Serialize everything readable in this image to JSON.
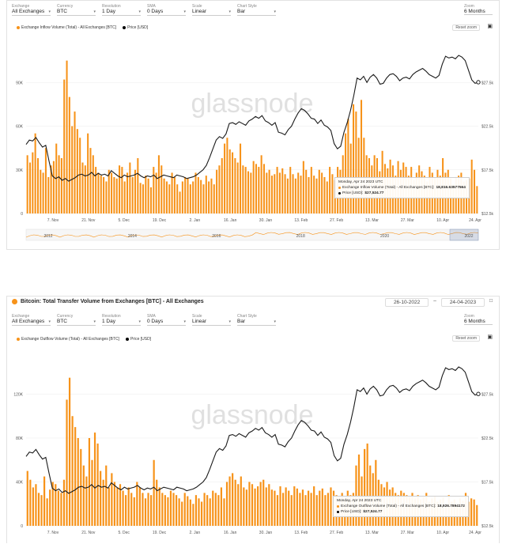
{
  "panel1": {
    "controls": [
      {
        "label": "Exchange",
        "value": "All Exchanges"
      },
      {
        "label": "Currency",
        "value": "BTC"
      },
      {
        "label": "Resolution",
        "value": "1 Day"
      },
      {
        "label": "SMA",
        "value": "0 Days"
      },
      {
        "label": "Scale",
        "value": "Linear"
      },
      {
        "label": "Chart Style",
        "value": "Bar"
      }
    ],
    "zoom": {
      "label": "Zoom",
      "value": "6 Months"
    },
    "reset_label": "Reset zoom",
    "legend": [
      {
        "name": "Exchange Inflow Volume (Total) - All Exchanges [BTC]",
        "color": "#f7931a"
      },
      {
        "name": "Price [USD]",
        "color": "#000000"
      }
    ],
    "tooltip": {
      "date": "Monday, Apr 24 2023 UTC",
      "series_label": "Exchange Inflow Volume (Total) - All Exchanges [BTC]:",
      "series_value": "18,816.63577564",
      "price_label": "Price [USD]:",
      "price_value": "$27,524.77"
    },
    "navigator_years": [
      "2012",
      "2014",
      "2016",
      "2018",
      "2020",
      "2022"
    ]
  },
  "panel2": {
    "title": "Bitcoin: Total Transfer Volume from Exchanges [BTC] - All Exchanges",
    "date_from": "26-10-2022",
    "date_sep": "–",
    "date_to": "24-04-2023",
    "controls": [
      {
        "label": "Exchange",
        "value": "All Exchanges"
      },
      {
        "label": "Currency",
        "value": "BTC"
      },
      {
        "label": "Resolution",
        "value": "1 Day"
      },
      {
        "label": "SMA",
        "value": "0 Days"
      },
      {
        "label": "Scale",
        "value": "Linear"
      },
      {
        "label": "Chart Style",
        "value": "Bar"
      }
    ],
    "zoom": {
      "label": "Zoom",
      "value": "6 Months"
    },
    "reset_label": "Reset zoom",
    "legend": [
      {
        "name": "Exchange Outflow Volume (Total) - All Exchanges [BTC]",
        "color": "#f7931a"
      },
      {
        "name": "Price [USD]",
        "color": "#000000"
      }
    ],
    "tooltip": {
      "date": "Monday, Apr 24 2023 UTC",
      "series_label": "Exchange Outflow Volume (Total) - All Exchanges [BTC]:",
      "series_value": "18,926.7894172",
      "price_label": "Price [USD]:",
      "price_value": "$27,524.77"
    }
  },
  "watermark": "glassnode",
  "colors": {
    "bar": "#f7931a",
    "price": "#1a1a1a",
    "grid": "#ececec"
  },
  "chart_data": [
    {
      "type": "bar",
      "x_ticks": [
        "7. Nov",
        "21. Nov",
        "5. Dec",
        "19. Dec",
        "2. Jan",
        "16. Jan",
        "30. Jan",
        "13. Feb",
        "27. Feb",
        "13. Mar",
        "27. Mar",
        "10. Apr",
        "24. Apr"
      ],
      "y_left_ticks": [
        "0",
        "30K",
        "60K",
        "90K"
      ],
      "y_right_ticks": [
        "$12.5k",
        "$17.5k",
        "$22.5k",
        "$27.5k"
      ],
      "y_left_range": [
        0,
        120000
      ],
      "y_right_range": [
        12500,
        32500
      ],
      "series": [
        {
          "name": "Exchange Inflow Volume (Total) - All Exchanges [BTC]",
          "values": [
            40000,
            35000,
            42000,
            55000,
            38000,
            30000,
            28000,
            45000,
            25000,
            33000,
            36000,
            48000,
            40000,
            38000,
            92000,
            105000,
            80000,
            60000,
            70000,
            58000,
            52000,
            35000,
            33000,
            55000,
            45000,
            40000,
            32000,
            28000,
            26000,
            25000,
            22000,
            30000,
            28000,
            25000,
            24000,
            33000,
            32000,
            22000,
            28000,
            35000,
            25000,
            30000,
            38000,
            21000,
            20000,
            26000,
            24000,
            18000,
            32000,
            28000,
            40000,
            33000,
            24000,
            22000,
            20000,
            28000,
            25000,
            20000,
            15000,
            22000,
            25000,
            24000,
            20000,
            22000,
            28000,
            25000,
            23000,
            20000,
            26000,
            22000,
            24000,
            20000,
            30000,
            33000,
            38000,
            48000,
            52000,
            44000,
            42000,
            38000,
            35000,
            48000,
            33000,
            32000,
            29000,
            28000,
            36000,
            34000,
            32000,
            40000,
            34000,
            28000,
            30000,
            26000,
            27000,
            32000,
            28000,
            31000,
            27000,
            24000,
            32000,
            27000,
            24000,
            28000,
            26000,
            36000,
            30000,
            25000,
            32000,
            26000,
            24000,
            30000,
            28000,
            25000,
            22000,
            32000,
            27000,
            23000,
            32000,
            30000,
            40000,
            55000,
            65000,
            48000,
            75000,
            70000,
            52000,
            78000,
            52000,
            40000,
            38000,
            33000,
            40000,
            38000,
            29000,
            43000,
            34000,
            31000,
            37000,
            33000,
            26000,
            36000,
            30000,
            35000,
            32000,
            26000,
            32000,
            23000,
            28000,
            33000,
            29000,
            26000,
            22000,
            32000,
            28000,
            25000,
            30000,
            26000,
            38000,
            28000,
            30000,
            24000,
            20000,
            25000,
            26000,
            28000,
            22000,
            23000,
            24000,
            37000,
            30000,
            18816
          ]
        },
        {
          "name": "Price [USD]",
          "values": [
            20400,
            20900,
            20800,
            21200,
            20600,
            20100,
            20300,
            18500,
            16800,
            16500,
            16700,
            16300,
            16500,
            16200,
            16400,
            16600,
            16900,
            17000,
            16800,
            16900,
            17200,
            16800,
            17100,
            16900,
            17000,
            16800,
            17400,
            17100,
            16800,
            16600,
            16900,
            16700,
            16800,
            16900,
            17100,
            16800,
            16600,
            16800,
            16700,
            16900,
            16500,
            16700,
            16900,
            16800,
            16700,
            16600,
            16900,
            16800,
            16700,
            16500,
            16600,
            16700,
            16900,
            17200,
            17500,
            18000,
            18900,
            19900,
            20900,
            21300,
            21100,
            21600,
            22800,
            22900,
            22700,
            23000,
            22800,
            22600,
            23100,
            23300,
            23600,
            23400,
            23700,
            23100,
            22900,
            22600,
            22900,
            21800,
            21700,
            21500,
            22100,
            22500,
            23300,
            24000,
            24500,
            24300,
            23900,
            23400,
            23300,
            22800,
            23200,
            22600,
            22400,
            22000,
            20500,
            19900,
            20200,
            21800,
            22900,
            24300,
            26000,
            28000,
            27800,
            28200,
            27500,
            28100,
            28400,
            28000,
            27300,
            27400,
            28000,
            28400,
            28500,
            28200,
            27700,
            28000,
            28100,
            27900,
            28400,
            28700,
            28900,
            29100,
            28800,
            28400,
            28200,
            28000,
            28300,
            29600,
            30500,
            30300,
            30400,
            30200,
            30600,
            30400,
            30000,
            28900,
            27800,
            27400,
            27524
          ]
        }
      ]
    },
    {
      "type": "bar",
      "x_ticks": [
        "7. Nov",
        "21. Nov",
        "5. Dec",
        "19. Dec",
        "2. Jan",
        "16. Jan",
        "30. Jan",
        "13. Feb",
        "27. Feb",
        "13. Mar",
        "27. Mar",
        "10. Apr",
        "24. Apr"
      ],
      "y_left_ticks": [
        "0",
        "40K",
        "80K",
        "120K"
      ],
      "y_right_ticks": [
        "$12.5k",
        "$17.5k",
        "$22.5k",
        "$27.5k"
      ],
      "y_left_range": [
        0,
        160000
      ],
      "y_right_range": [
        12500,
        32500
      ],
      "series": [
        {
          "name": "Exchange Outflow Volume (Total) - All Exchanges [BTC]",
          "values": [
            50000,
            42000,
            35000,
            38000,
            30000,
            28000,
            45000,
            25000,
            33000,
            40000,
            38000,
            32000,
            30000,
            42000,
            115000,
            135000,
            100000,
            90000,
            80000,
            70000,
            55000,
            45000,
            80000,
            60000,
            85000,
            75000,
            50000,
            42000,
            55000,
            35000,
            48000,
            40000,
            35000,
            38000,
            32000,
            28000,
            35000,
            30000,
            26000,
            40000,
            35000,
            30000,
            25000,
            30000,
            28000,
            60000,
            42000,
            35000,
            30000,
            28000,
            26000,
            32000,
            30000,
            28000,
            25000,
            22000,
            30000,
            27000,
            24000,
            20000,
            28000,
            25000,
            22000,
            30000,
            28000,
            25000,
            32000,
            30000,
            28000,
            35000,
            25000,
            40000,
            45000,
            48000,
            42000,
            38000,
            45000,
            35000,
            33000,
            40000,
            38000,
            34000,
            36000,
            40000,
            42000,
            35000,
            38000,
            33000,
            32000,
            28000,
            36000,
            30000,
            35000,
            32000,
            28000,
            36000,
            34000,
            30000,
            33000,
            28000,
            32000,
            30000,
            36000,
            28000,
            32000,
            34000,
            28000,
            30000,
            35000,
            32000,
            28000,
            26000,
            30000,
            25000,
            32000,
            28000,
            30000,
            55000,
            65000,
            45000,
            70000,
            75000,
            55000,
            48000,
            60000,
            42000,
            38000,
            35000,
            40000,
            33000,
            35000,
            30000,
            28000,
            32000,
            30000,
            28000,
            26000,
            30000,
            25000,
            28000,
            24000,
            26000,
            30000,
            22000,
            25000,
            27000,
            22000,
            24000,
            26000,
            20000,
            28000,
            22000,
            24000,
            20000,
            25000,
            23000,
            30000,
            22000,
            25000,
            24000,
            18926
          ]
        },
        {
          "name": "Price [USD]",
          "values": [
            20400,
            20900,
            20800,
            21200,
            20600,
            20100,
            20300,
            18500,
            16800,
            16500,
            16700,
            16300,
            16500,
            16200,
            16400,
            16600,
            16900,
            17000,
            16800,
            16900,
            17200,
            16800,
            17100,
            16900,
            17000,
            16800,
            17400,
            17100,
            16800,
            16600,
            16900,
            16700,
            16800,
            16900,
            17100,
            16800,
            16600,
            16800,
            16700,
            16900,
            16500,
            16700,
            16900,
            16800,
            16700,
            16600,
            16900,
            16800,
            16700,
            16500,
            16600,
            16700,
            16900,
            17200,
            17500,
            18000,
            18900,
            19900,
            20900,
            21300,
            21100,
            21600,
            22800,
            22900,
            22700,
            23000,
            22800,
            22600,
            23100,
            23300,
            23600,
            23400,
            23700,
            23100,
            22900,
            22600,
            22900,
            21800,
            21700,
            21500,
            22100,
            22500,
            23300,
            24000,
            24500,
            24300,
            23900,
            23400,
            23300,
            22800,
            23200,
            22600,
            22400,
            22000,
            20500,
            19900,
            20200,
            21800,
            22900,
            24300,
            26000,
            28000,
            27800,
            28200,
            27500,
            28100,
            28400,
            28000,
            27300,
            27400,
            28000,
            28400,
            28500,
            28200,
            27700,
            28000,
            28100,
            27900,
            28400,
            28700,
            28900,
            29100,
            28800,
            28400,
            28200,
            28000,
            28300,
            29600,
            30500,
            30300,
            30400,
            30200,
            30600,
            30400,
            30000,
            28900,
            27800,
            27400,
            27524
          ]
        }
      ]
    }
  ]
}
